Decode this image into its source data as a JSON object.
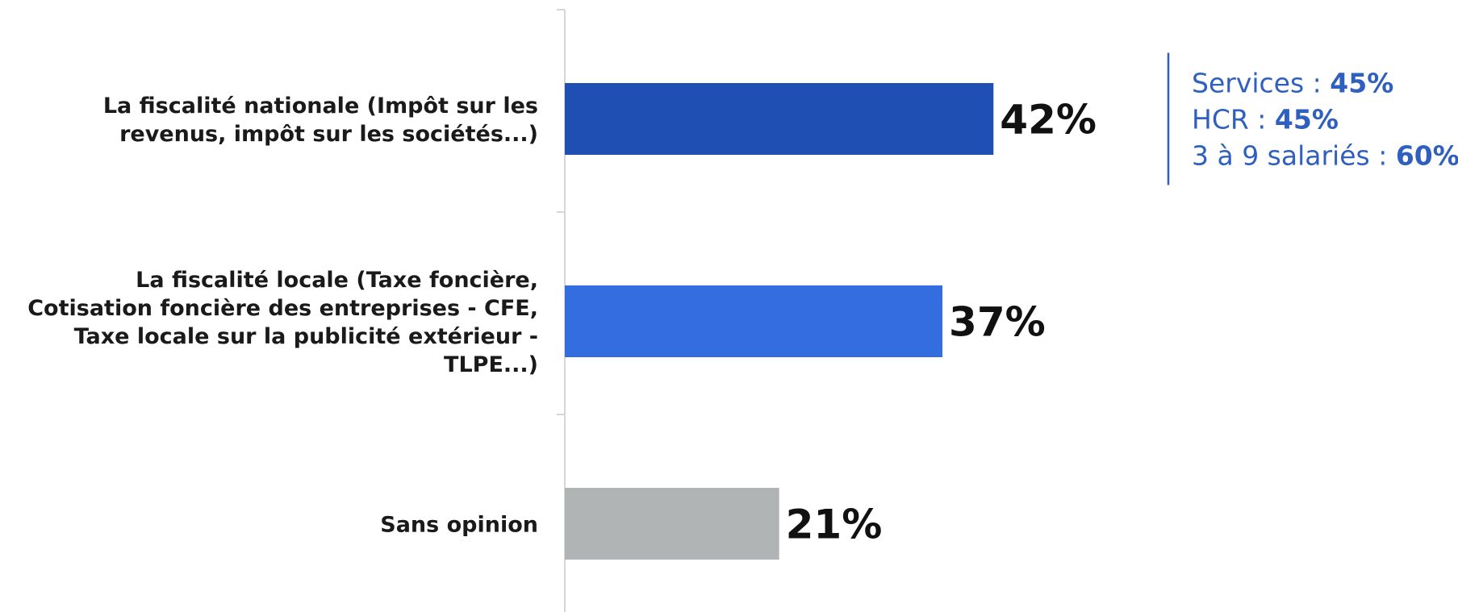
{
  "chart_data": {
    "type": "bar",
    "orientation": "horizontal",
    "categories": [
      "La fiscalité nationale (Impôt sur les revenus, impôt sur les sociétés...)",
      "La fiscalité locale (Taxe foncière, Cotisation foncière des entreprises - CFE, Taxe locale sur la publicité extérieur - TLPE...)",
      "Sans opinion"
    ],
    "category_label_lines": [
      [
        "La fiscalité nationale (Impôt sur les",
        "revenus, impôt sur les sociétés...)"
      ],
      [
        "La fiscalité locale (Taxe foncière,",
        "Cotisation foncière des entreprises - CFE,",
        "Taxe locale sur la publicité extérieur -",
        "TLPE...)"
      ],
      [
        "Sans opinion"
      ]
    ],
    "values": [
      42,
      37,
      21
    ],
    "value_labels": [
      "42%",
      "37%",
      "21%"
    ],
    "bar_colors": [
      "#1f4fb3",
      "#336ddf",
      "#b1b4b5"
    ],
    "xlim": [
      0,
      100
    ],
    "grid": false,
    "legend": "none",
    "annotation": {
      "attached_to": 0,
      "color": "#2f5fbf",
      "lines": [
        {
          "label": "Services : ",
          "value": "45%"
        },
        {
          "label": "HCR : ",
          "value": "45%"
        },
        {
          "label": "3 à 9 salariés : ",
          "value": "60%"
        }
      ]
    }
  }
}
